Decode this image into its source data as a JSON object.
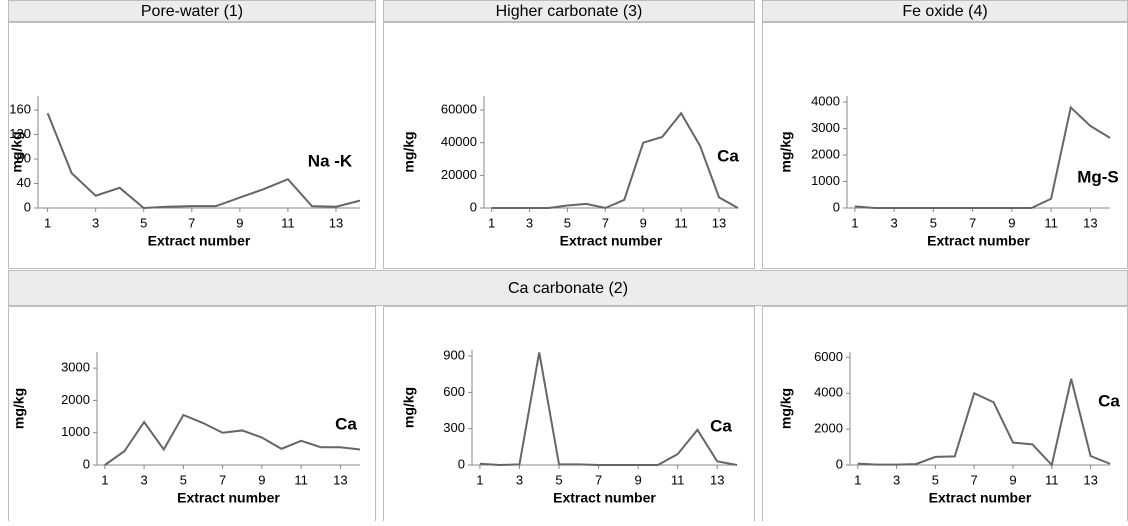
{
  "headers": [
    "Pore-water (1)",
    "Higher carbonate (3)",
    "Fe oxide (4)",
    "Ca carbonate (2)"
  ],
  "chart_data": [
    {
      "type": "line",
      "x": [
        1,
        2,
        3,
        4,
        5,
        6,
        7,
        8,
        9,
        10,
        11,
        12,
        13,
        14
      ],
      "values": [
        155,
        57,
        20,
        33,
        0,
        2,
        3,
        3,
        17,
        31,
        47,
        3,
        2,
        12
      ],
      "color": "#666666",
      "xlim": [
        0.6,
        14
      ],
      "xticks": [
        1,
        3,
        5,
        7,
        9,
        11,
        13
      ],
      "ylim": [
        0,
        183
      ],
      "yticks": [
        0,
        40,
        80,
        120,
        160
      ],
      "xlabel": "Extract number",
      "ylabel": "mg/kg",
      "annotation": "Na -K"
    },
    {
      "type": "line",
      "x": [
        1,
        2,
        3,
        4,
        5,
        6,
        7,
        8,
        9,
        10,
        11,
        12,
        13,
        14
      ],
      "values": [
        0,
        0,
        0,
        0,
        1500,
        2500,
        0,
        5000,
        40000,
        43500,
        58000,
        38000,
        6500,
        0
      ],
      "color": "#666666",
      "xlim": [
        0.6,
        14
      ],
      "xticks": [
        1,
        3,
        5,
        7,
        9,
        11,
        13
      ],
      "ylim": [
        0,
        68600
      ],
      "yticks": [
        0,
        20000,
        40000,
        60000
      ],
      "xlabel": "Extract number",
      "ylabel": "mg/kg",
      "annotation": "Ca"
    },
    {
      "type": "line",
      "x": [
        1,
        2,
        3,
        4,
        5,
        6,
        7,
        8,
        9,
        10,
        11,
        12,
        13,
        14
      ],
      "values": [
        60,
        0,
        0,
        0,
        0,
        0,
        0,
        0,
        0,
        0,
        350,
        3800,
        3100,
        2650
      ],
      "color": "#666666",
      "xlim": [
        0.6,
        14
      ],
      "xticks": [
        1,
        3,
        5,
        7,
        9,
        11,
        13
      ],
      "ylim": [
        0,
        4230
      ],
      "yticks": [
        0,
        1000,
        2000,
        3000,
        4000
      ],
      "xlabel": "Extract number",
      "ylabel": "mg/kg",
      "annotation": "Mg-S"
    },
    {
      "type": "line",
      "x": [
        1,
        2,
        3,
        4,
        5,
        6,
        7,
        8,
        9,
        10,
        11,
        12,
        13,
        14
      ],
      "values": [
        0,
        430,
        1330,
        480,
        1550,
        1300,
        1000,
        1070,
        850,
        500,
        750,
        550,
        550,
        480
      ],
      "color": "#666666",
      "xlim": [
        0.6,
        14
      ],
      "xticks": [
        1,
        3,
        5,
        7,
        9,
        11,
        13
      ],
      "ylim": [
        0,
        3500
      ],
      "yticks": [
        0,
        1000,
        2000,
        3000
      ],
      "xlabel": "Extract number",
      "ylabel": "mg/kg",
      "annotation": "Ca"
    },
    {
      "type": "line",
      "x": [
        1,
        2,
        3,
        4,
        5,
        6,
        7,
        8,
        9,
        10,
        11,
        12,
        13,
        14
      ],
      "values": [
        10,
        0,
        5,
        930,
        5,
        5,
        0,
        0,
        0,
        0,
        90,
        290,
        30,
        0
      ],
      "color": "#666666",
      "xlim": [
        0.6,
        14
      ],
      "xticks": [
        1,
        3,
        5,
        7,
        9,
        11,
        13
      ],
      "ylim": [
        0,
        950
      ],
      "yticks": [
        0,
        300,
        600,
        900
      ],
      "xlabel": "Extract number",
      "ylabel": "mg/kg",
      "annotation": "Ca"
    },
    {
      "type": "line",
      "x": [
        1,
        2,
        3,
        4,
        5,
        6,
        7,
        8,
        9,
        10,
        11,
        12,
        13,
        14
      ],
      "values": [
        80,
        20,
        20,
        50,
        450,
        480,
        4000,
        3500,
        1250,
        1150,
        0,
        4800,
        500,
        70
      ],
      "color": "#666666",
      "xlim": [
        0.6,
        14
      ],
      "xticks": [
        1,
        3,
        5,
        7,
        9,
        11,
        13
      ],
      "ylim": [
        0,
        6300
      ],
      "yticks": [
        0,
        2000,
        4000,
        6000
      ],
      "xlabel": "Extract number",
      "ylabel": "mg/kg",
      "annotation": "Ca"
    }
  ]
}
